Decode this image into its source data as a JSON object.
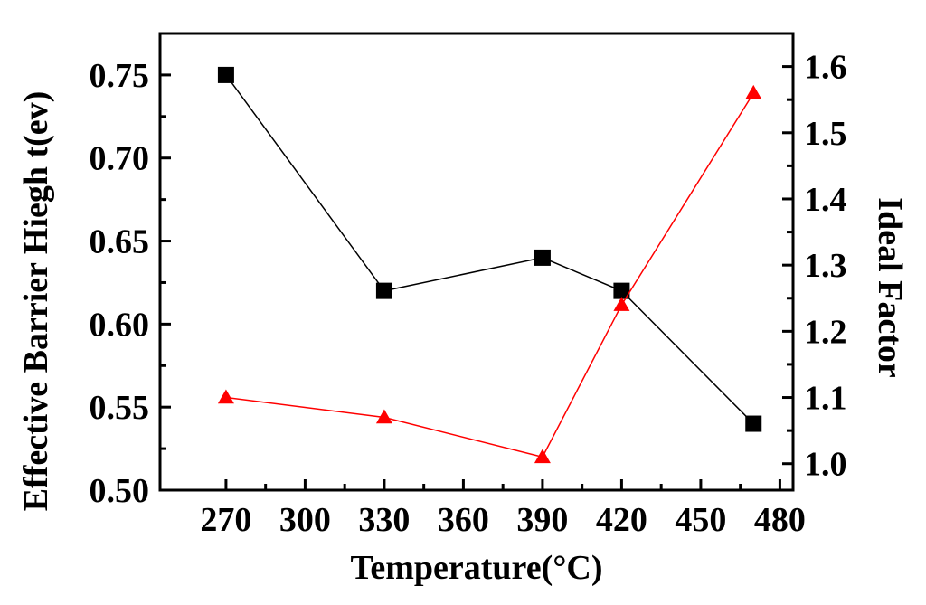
{
  "chart_data": {
    "type": "line",
    "xlabel": "Temperature(°C)",
    "ylabel": "Effective Barrier Hiegh t(ev)",
    "y2label": "Ideal Factor",
    "xlim": [
      245,
      485
    ],
    "ylim": [
      0.5,
      0.775
    ],
    "y2lim": [
      0.96,
      1.65
    ],
    "x_ticks": [
      "270",
      "300",
      "330",
      "360",
      "390",
      "420",
      "450",
      "480"
    ],
    "y_ticks": [
      "0.50",
      "0.55",
      "0.60",
      "0.65",
      "0.70",
      "0.75"
    ],
    "y2_ticks": [
      "1.0",
      "1.1",
      "1.2",
      "1.3",
      "1.4",
      "1.5",
      "1.6"
    ],
    "grid": false,
    "series": [
      {
        "axis": "left",
        "marker": "square",
        "color": "#000000",
        "x": [
          270,
          330,
          390,
          420,
          470
        ],
        "values": [
          0.75,
          0.62,
          0.64,
          0.62,
          0.54
        ]
      },
      {
        "axis": "right",
        "marker": "triangle",
        "color": "#ff0000",
        "x": [
          270,
          330,
          390,
          420,
          470
        ],
        "values": [
          1.1,
          1.07,
          1.01,
          1.24,
          1.56
        ]
      }
    ]
  }
}
